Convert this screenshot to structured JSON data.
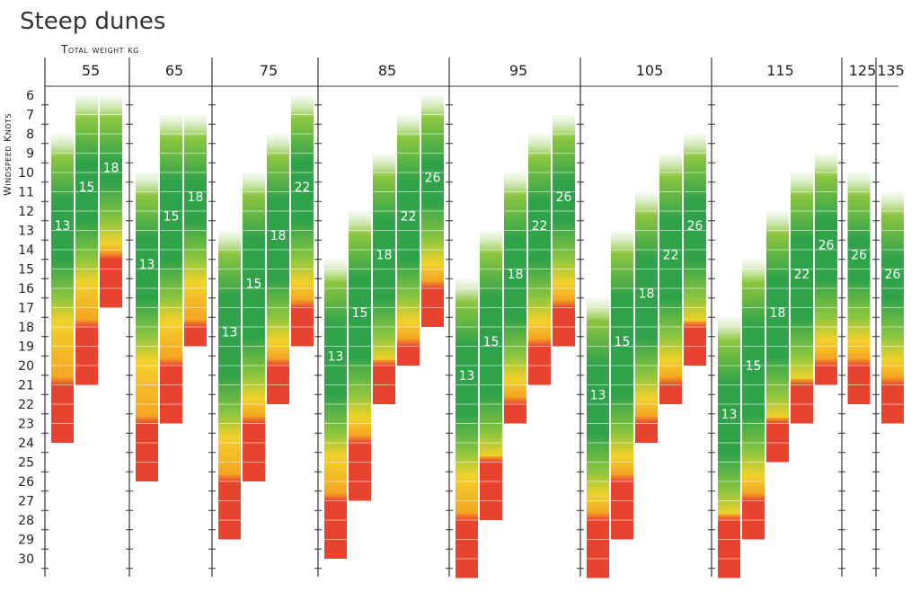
{
  "chart_data": {
    "type": "heatmap",
    "title": "Steep dunes",
    "xlabel": "Total weight kg",
    "ylabel": "Windspeed Knots",
    "y_ticks": [
      6,
      7,
      8,
      9,
      10,
      11,
      12,
      13,
      14,
      15,
      16,
      17,
      18,
      19,
      20,
      21,
      22,
      23,
      24,
      25,
      26,
      27,
      28,
      29,
      30
    ],
    "colors": {
      "green": "#2fa24a",
      "light_green": "#8cc63f",
      "yellow": "#f2d12a",
      "orange": "#f5a623",
      "red": "#e8432e"
    },
    "groups": [
      {
        "weight": "55",
        "bars": [
          {
            "size": "13",
            "wind_top": 8.0,
            "wind_green_end": 16.5,
            "wind_red_start": 21,
            "wind_end": 23
          },
          {
            "size": "15",
            "wind_top": 6.0,
            "wind_green_end": 14.5,
            "wind_red_start": 18,
            "wind_end": 20
          },
          {
            "size": "18",
            "wind_top": 6.0,
            "wind_green_end": 12.5,
            "wind_red_start": 14.5,
            "wind_end": 16
          }
        ]
      },
      {
        "weight": "65",
        "bars": [
          {
            "size": "13",
            "wind_top": 10.0,
            "wind_green_end": 18.5,
            "wind_red_start": 23,
            "wind_end": 25
          },
          {
            "size": "15",
            "wind_top": 7.0,
            "wind_green_end": 16.5,
            "wind_red_start": 20,
            "wind_end": 22
          },
          {
            "size": "18",
            "wind_top": 7.0,
            "wind_green_end": 14.5,
            "wind_red_start": 18,
            "wind_end": 18
          }
        ]
      },
      {
        "weight": "75",
        "bars": [
          {
            "size": "13",
            "wind_top": 13.0,
            "wind_green_end": 22.5,
            "wind_red_start": 26,
            "wind_end": 28
          },
          {
            "size": "15",
            "wind_top": 10.0,
            "wind_green_end": 20.5,
            "wind_red_start": 23,
            "wind_end": 25
          },
          {
            "size": "18",
            "wind_top": 8.0,
            "wind_green_end": 17.5,
            "wind_red_start": 20,
            "wind_end": 21
          },
          {
            "size": "22",
            "wind_top": 6.0,
            "wind_green_end": 14.5,
            "wind_red_start": 17,
            "wind_end": 18
          }
        ]
      },
      {
        "weight": "85",
        "bars": [
          {
            "size": "13",
            "wind_top": 14.5,
            "wind_green_end": 23.5,
            "wind_red_start": 27,
            "wind_end": 29
          },
          {
            "size": "15",
            "wind_top": 12.0,
            "wind_green_end": 21.5,
            "wind_red_start": 24,
            "wind_end": 26
          },
          {
            "size": "18",
            "wind_top": 9.0,
            "wind_green_end": 18.5,
            "wind_red_start": 20,
            "wind_end": 21
          },
          {
            "size": "22",
            "wind_top": 7.0,
            "wind_green_end": 16.5,
            "wind_red_start": 19,
            "wind_end": 19
          },
          {
            "size": "26",
            "wind_top": 6.0,
            "wind_green_end": 13.5,
            "wind_red_start": 16,
            "wind_end": 17
          }
        ]
      },
      {
        "weight": "95",
        "bars": [
          {
            "size": "13",
            "wind_top": 15.5,
            "wind_green_end": 24.5,
            "wind_red_start": 28,
            "wind_end": 30
          },
          {
            "size": "15",
            "wind_top": 13.0,
            "wind_green_end": 23.5,
            "wind_red_start": 25,
            "wind_end": 27
          },
          {
            "size": "18",
            "wind_top": 10.0,
            "wind_green_end": 19.5,
            "wind_red_start": 22,
            "wind_end": 22
          },
          {
            "size": "22",
            "wind_top": 8.0,
            "wind_green_end": 16.5,
            "wind_red_start": 19,
            "wind_end": 20
          },
          {
            "size": "26",
            "wind_top": 7.0,
            "wind_green_end": 14.5,
            "wind_red_start": 17,
            "wind_end": 18
          }
        ]
      },
      {
        "weight": "105",
        "bars": [
          {
            "size": "13",
            "wind_top": 16.5,
            "wind_green_end": 25.5,
            "wind_red_start": 28,
            "wind_end": 30
          },
          {
            "size": "15",
            "wind_top": 13.0,
            "wind_green_end": 23.5,
            "wind_red_start": 26,
            "wind_end": 28
          },
          {
            "size": "18",
            "wind_top": 11.0,
            "wind_green_end": 20.5,
            "wind_red_start": 23,
            "wind_end": 23
          },
          {
            "size": "22",
            "wind_top": 9.0,
            "wind_green_end": 18.5,
            "wind_red_start": 21,
            "wind_end": 21
          },
          {
            "size": "26",
            "wind_top": 8.0,
            "wind_green_end": 16.5,
            "wind_red_start": 18,
            "wind_end": 19
          }
        ]
      },
      {
        "weight": "115",
        "bars": [
          {
            "size": "13",
            "wind_top": 17.5,
            "wind_green_end": 26.5,
            "wind_red_start": 28,
            "wind_end": 30
          },
          {
            "size": "15",
            "wind_top": 14.5,
            "wind_green_end": 24.5,
            "wind_red_start": 27,
            "wind_end": 28
          },
          {
            "size": "18",
            "wind_top": 12.0,
            "wind_green_end": 21.5,
            "wind_red_start": 23,
            "wind_end": 24
          },
          {
            "size": "22",
            "wind_top": 10.0,
            "wind_green_end": 19.5,
            "wind_red_start": 21,
            "wind_end": 22
          },
          {
            "size": "26",
            "wind_top": 9.0,
            "wind_green_end": 17.5,
            "wind_red_start": 20,
            "wind_end": 20
          }
        ]
      },
      {
        "weight": "125",
        "bars": [
          {
            "size": "26",
            "wind_top": 10.0,
            "wind_green_end": 17.5,
            "wind_red_start": 20,
            "wind_end": 21
          }
        ]
      },
      {
        "weight": "135",
        "bars": [
          {
            "size": "26",
            "wind_top": 11.0,
            "wind_green_end": 18.5,
            "wind_red_start": 21,
            "wind_end": 22
          }
        ]
      }
    ]
  }
}
